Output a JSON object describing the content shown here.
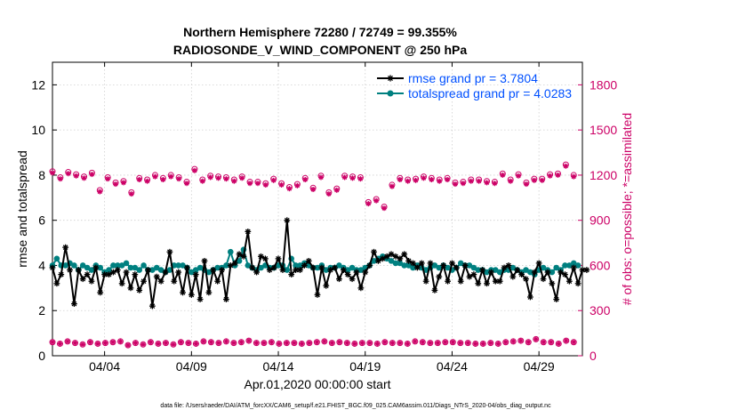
{
  "chart_data": {
    "type": "line",
    "title_line1": "Northern Hemisphere 72280 / 72749 = 99.355%",
    "title_line2": "RADIOSONDE_V_WIND_COMPONENT @ 250 hPa",
    "xlabel": "Apr.01,2020 00:00:00 start",
    "ylabel_left": "rmse and totalspread",
    "ylabel_right": "# of obs: o=possible; *=assimilated",
    "xlim": [
      1,
      31.5
    ],
    "ylim_left": [
      0,
      13
    ],
    "ylim_right": [
      0,
      1950
    ],
    "x_ticks": [
      {
        "value": 4,
        "label": "04/04"
      },
      {
        "value": 9,
        "label": "04/09"
      },
      {
        "value": 14,
        "label": "04/14"
      },
      {
        "value": 19,
        "label": "04/19"
      },
      {
        "value": 24,
        "label": "04/24"
      },
      {
        "value": 29,
        "label": "04/29"
      }
    ],
    "y_ticks_left": [
      {
        "value": 0,
        "label": "0"
      },
      {
        "value": 2,
        "label": "2"
      },
      {
        "value": 4,
        "label": "4"
      },
      {
        "value": 6,
        "label": "6"
      },
      {
        "value": 8,
        "label": "8"
      },
      {
        "value": 10,
        "label": "10"
      },
      {
        "value": 12,
        "label": "12"
      }
    ],
    "y_ticks_right": [
      {
        "value": 0,
        "label": "0"
      },
      {
        "value": 300,
        "label": "300"
      },
      {
        "value": 600,
        "label": "600"
      },
      {
        "value": 900,
        "label": "900"
      },
      {
        "value": 1200,
        "label": "1200"
      },
      {
        "value": 1500,
        "label": "1500"
      },
      {
        "value": 1800,
        "label": "1800"
      }
    ],
    "grid": true,
    "legend_position": "top-right",
    "legend": [
      {
        "label": "rmse grand pr = 3.7804",
        "series": "rmse"
      },
      {
        "label": "totalspread grand pr = 4.0283",
        "series": "totalspread"
      }
    ],
    "footer": "data file: /Users/raeder/DAI/ATM_forcXX/CAM6_setup/f.e21.FHIST_BGC.f09_025.CAM6assim.011/Diags_NTrS_2020-04/obs_diag_output.nc",
    "start_day": 1.0,
    "step_days": 0.25,
    "series": [
      {
        "name": "rmse",
        "color": "#000000",
        "marker": "star",
        "axis": "left",
        "values": [
          3.9,
          3.2,
          3.6,
          4.8,
          3.8,
          2.3,
          3.8,
          3.4,
          3.6,
          3.3,
          3.9,
          2.8,
          3.6,
          3.6,
          3.7,
          3.8,
          3.2,
          3.7,
          3.0,
          3.6,
          2.9,
          3.3,
          3.8,
          2.2,
          3.5,
          3.3,
          3.7,
          4.6,
          3.3,
          3.7,
          2.8,
          3.9,
          2.7,
          3.6,
          2.5,
          4.2,
          2.8,
          3.8,
          3.3,
          3.8,
          2.5,
          4.0,
          4.1,
          4.5,
          4.4,
          5.5,
          3.9,
          3.7,
          4.4,
          4.3,
          3.8,
          3.9,
          4.3,
          3.8,
          6.0,
          3.6,
          3.8,
          3.8,
          4.0,
          4.2,
          3.9,
          2.7,
          3.9,
          3.1,
          3.8,
          3.9,
          3.4,
          3.8,
          3.6,
          3.4,
          3.7,
          3.0,
          3.7,
          4.0,
          4.6,
          4.2,
          4.3,
          4.4,
          4.5,
          4.4,
          4.3,
          4.5,
          4.2,
          4.1,
          3.9,
          4.1,
          3.3,
          4.1,
          2.9,
          3.5,
          4.0,
          3.3,
          4.1,
          3.9,
          3.3,
          4.0,
          3.5,
          3.6,
          3.2,
          3.8,
          3.2,
          3.7,
          3.3,
          3.3,
          3.9,
          4.0,
          3.5,
          3.8,
          3.6,
          3.4,
          2.6,
          3.7,
          4.1,
          3.4,
          3.7,
          3.2,
          2.5,
          3.7,
          3.6,
          3.3,
          3.9,
          3.2,
          3.8,
          3.8
        ]
      },
      {
        "name": "totalspread",
        "color": "#008080",
        "marker": "circle",
        "axis": "left",
        "values": [
          4.0,
          4.3,
          4.0,
          4.0,
          4.1,
          4.0,
          3.8,
          4.0,
          3.9,
          3.8,
          4.0,
          3.9,
          3.7,
          3.8,
          4.0,
          4.0,
          4.0,
          4.1,
          3.9,
          3.9,
          3.8,
          4.0,
          3.8,
          3.8,
          3.9,
          3.8,
          3.7,
          3.8,
          4.0,
          4.0,
          4.0,
          3.9,
          3.7,
          3.8,
          3.9,
          3.8,
          3.7,
          3.8,
          3.9,
          3.9,
          4.0,
          4.6,
          4.0,
          4.2,
          4.7,
          4.0,
          3.9,
          3.8,
          3.9,
          4.0,
          3.9,
          3.9,
          4.0,
          4.0,
          3.8,
          4.3,
          4.0,
          4.0,
          4.1,
          4.0,
          3.9,
          3.9,
          4.0,
          3.8,
          3.9,
          3.9,
          4.0,
          3.9,
          3.8,
          3.9,
          3.8,
          3.8,
          3.9,
          4.0,
          4.2,
          4.3,
          4.4,
          4.3,
          4.2,
          4.1,
          4.1,
          4.0,
          4.0,
          3.9,
          4.0,
          3.9,
          3.8,
          3.9,
          4.0,
          3.9,
          4.0,
          3.9,
          3.8,
          3.9,
          4.1,
          4.0,
          4.0,
          3.9,
          3.8,
          3.8,
          3.7,
          3.8,
          3.8,
          3.7,
          3.8,
          3.8,
          3.9,
          3.8,
          3.7,
          3.8,
          3.7,
          3.6,
          3.8,
          3.9,
          3.8,
          3.7,
          3.9,
          3.8,
          4.0,
          4.0,
          4.1,
          4.0
        ]
      },
      {
        "name": "obs_possible",
        "color": "#cc0066",
        "marker": "circle-open",
        "axis": "right",
        "values": [
          1225,
          1185,
          1220,
          1205,
          1190,
          1215,
          1100,
          1185,
          1150,
          1160,
          1085,
          1180,
          1170,
          1200,
          1180,
          1200,
          1185,
          1155,
          1240,
          1170,
          1195,
          1190,
          1185,
          1170,
          1190,
          1155,
          1155,
          1145,
          1175,
          1145,
          1120,
          1140,
          1180,
          1115,
          1195,
          1085,
          1110,
          1195,
          1190,
          1185,
          1020,
          1040,
          990,
          1135,
          1180,
          1170,
          1175,
          1190,
          1180,
          1170,
          1180,
          1150,
          1155,
          1170,
          1170,
          1160,
          1155,
          1210,
          1170,
          1205,
          1150,
          1175,
          1175,
          1205,
          1210,
          1270,
          1200
        ]
      },
      {
        "name": "obs_assimilated",
        "color": "#cc0066",
        "marker": "star",
        "axis": "right",
        "values": [
          1215,
          1175,
          1210,
          1195,
          1180,
          1205,
          1090,
          1175,
          1140,
          1150,
          1075,
          1170,
          1160,
          1190,
          1170,
          1190,
          1175,
          1145,
          1230,
          1160,
          1185,
          1180,
          1175,
          1160,
          1180,
          1145,
          1145,
          1135,
          1165,
          1135,
          1110,
          1130,
          1170,
          1105,
          1185,
          1075,
          1100,
          1185,
          1180,
          1175,
          1010,
          1030,
          980,
          1125,
          1170,
          1160,
          1165,
          1180,
          1170,
          1160,
          1170,
          1140,
          1145,
          1160,
          1160,
          1150,
          1145,
          1200,
          1160,
          1195,
          1140,
          1165,
          1165,
          1195,
          1200,
          1260,
          1190
        ]
      },
      {
        "name": "obs_possible_low",
        "color": "#cc0066",
        "marker": "circle-open",
        "axis": "right",
        "values": [
          90,
          80,
          95,
          85,
          75,
          90,
          80,
          85,
          90,
          95,
          70,
          85,
          75,
          90,
          80,
          85,
          75,
          90,
          85,
          80,
          95,
          90,
          85,
          95,
          85,
          90,
          100,
          85,
          85,
          90,
          80,
          85,
          85,
          80,
          85,
          90,
          95,
          85,
          90,
          85,
          80,
          85,
          85,
          80,
          90,
          85,
          85,
          80,
          95,
          90,
          85,
          85,
          90,
          90,
          85,
          85,
          80,
          80,
          85,
          80,
          90,
          95,
          100,
          90,
          110,
          90,
          90,
          80,
          100,
          90
        ]
      }
    ]
  }
}
